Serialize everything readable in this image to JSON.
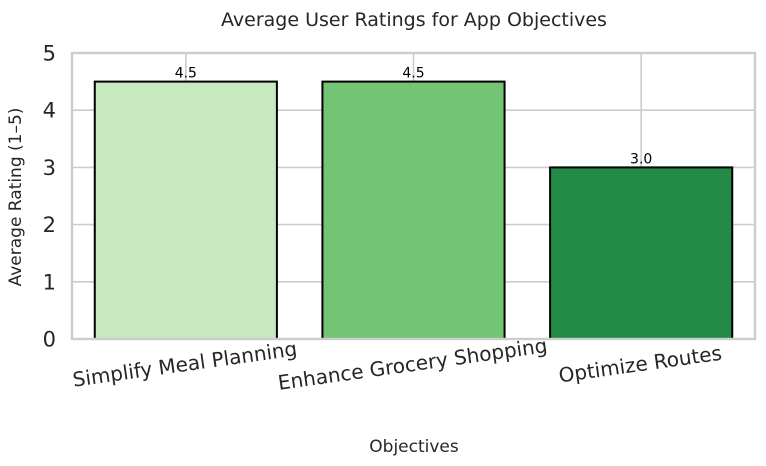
{
  "chart_data": {
    "type": "bar",
    "title": "Average User Ratings for App Objectives",
    "xlabel": "Objectives",
    "ylabel": "Average Rating (1–5)",
    "categories": [
      "Simplify Meal Planning",
      "Enhance Grocery Shopping",
      "Optimize Routes"
    ],
    "values": [
      4.5,
      4.5,
      3.0
    ],
    "data_labels": [
      "4.5",
      "4.5",
      "3.0"
    ],
    "ylim": [
      0,
      5
    ],
    "yticks": [
      0,
      1,
      2,
      3,
      4,
      5
    ],
    "ytick_labels": [
      "0",
      "1",
      "2",
      "3",
      "4",
      "5"
    ],
    "bar_colors": [
      "#c7e9c0",
      "#74c476",
      "#238b45"
    ],
    "bar_edge_color": "#000000",
    "grid": true,
    "grid_color": "#cccccc",
    "xtick_rotation_deg": -8
  }
}
